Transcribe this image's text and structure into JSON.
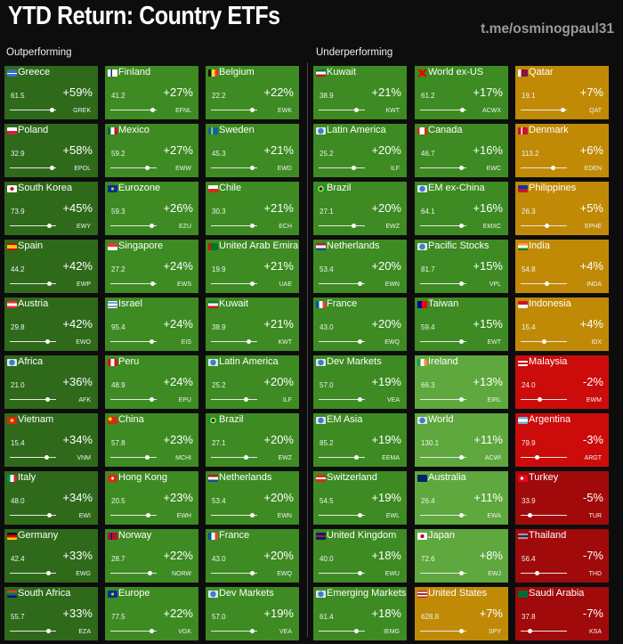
{
  "header": {
    "title": "YTD Return: Country ETFs",
    "channel": "t.me/osminogpaul31"
  },
  "sections": {
    "outperforming": "Outperforming",
    "underperforming": "Underperforming"
  },
  "colors": {
    "dark_green": "#2e6a1a",
    "green": "#3d8b22",
    "light_green": "#5ea83d",
    "amber": "#c18a06",
    "red": "#cc0b0b",
    "dark_red": "#a00a0a",
    "background": "#0d0d0d"
  },
  "columns": [
    {
      "section": "outperforming",
      "tiles": [
        {
          "name": "Greece",
          "price": "61.5",
          "return": "+59%",
          "ticker": "GREK",
          "color": "dark_green",
          "flag": "flag-greece",
          "range_position": 0.9
        },
        {
          "name": "Poland",
          "price": "32.9",
          "return": "+58%",
          "ticker": "EPOL",
          "color": "dark_green",
          "flag": "flag-poland",
          "range_position": 0.9
        },
        {
          "name": "South Korea",
          "price": "73.9",
          "return": "+45%",
          "ticker": "EWY",
          "color": "dark_green",
          "flag": "flag-south-korea",
          "range_position": 0.85
        },
        {
          "name": "Spain",
          "price": "44.2",
          "return": "+42%",
          "ticker": "EWP",
          "color": "dark_green",
          "flag": "flag-spain",
          "range_position": 0.85
        },
        {
          "name": "Austria",
          "price": "29.8",
          "return": "+42%",
          "ticker": "EWO",
          "color": "dark_green",
          "flag": "flag-austria",
          "range_position": 0.8
        },
        {
          "name": "Africa",
          "price": "21.0",
          "return": "+36%",
          "ticker": "AFK",
          "color": "dark_green",
          "flag": "flag-africa",
          "range_position": 0.8
        },
        {
          "name": "Vietnam",
          "price": "15.4",
          "return": "+34%",
          "ticker": "VNM",
          "color": "dark_green",
          "flag": "flag-vietnam",
          "range_position": 0.78
        },
        {
          "name": "Italy",
          "price": "48.0",
          "return": "+34%",
          "ticker": "EWI",
          "color": "dark_green",
          "flag": "flag-italy",
          "range_position": 0.85
        },
        {
          "name": "Germany",
          "price": "42.4",
          "return": "+33%",
          "ticker": "EWG",
          "color": "dark_green",
          "flag": "flag-germany",
          "range_position": 0.82
        },
        {
          "name": "South Africa",
          "price": "55.7",
          "return": "+33%",
          "ticker": "EZA",
          "color": "dark_green",
          "flag": "flag-south-africa",
          "range_position": 0.82
        }
      ]
    },
    {
      "section": "outperforming",
      "tiles": [
        {
          "name": "Finland",
          "price": "41.2",
          "return": "+27%",
          "ticker": "EFNL",
          "color": "green",
          "flag": "flag-finland",
          "range_position": 0.9
        },
        {
          "name": "Mexico",
          "price": "59.2",
          "return": "+27%",
          "ticker": "EWW",
          "color": "green",
          "flag": "flag-mexico",
          "range_position": 0.78
        },
        {
          "name": "Eurozone",
          "price": "59.3",
          "return": "+26%",
          "ticker": "EZU",
          "color": "green",
          "flag": "flag-eurozone",
          "range_position": 0.88
        },
        {
          "name": "Singapore",
          "price": "27.2",
          "return": "+24%",
          "ticker": "EWS",
          "color": "green",
          "flag": "flag-singapore",
          "range_position": 0.9
        },
        {
          "name": "Israel",
          "price": "95.4",
          "return": "+24%",
          "ticker": "EIS",
          "color": "green",
          "flag": "flag-israel",
          "range_position": 0.88
        },
        {
          "name": "Peru",
          "price": "48.9",
          "return": "+24%",
          "ticker": "EPU",
          "color": "green",
          "flag": "flag-peru",
          "range_position": 0.88
        },
        {
          "name": "China",
          "price": "57.8",
          "return": "+23%",
          "ticker": "MCHI",
          "color": "green",
          "flag": "flag-china",
          "range_position": 0.78
        },
        {
          "name": "Hong Kong",
          "price": "20.5",
          "return": "+23%",
          "ticker": "EWH",
          "color": "green",
          "flag": "flag-hong-kong",
          "range_position": 0.8
        },
        {
          "name": "Norway",
          "price": "28.7",
          "return": "+22%",
          "ticker": "NORW",
          "color": "green",
          "flag": "flag-norway",
          "range_position": 0.85
        },
        {
          "name": "Europe",
          "price": "77.5",
          "return": "+22%",
          "ticker": "VGK",
          "color": "green",
          "flag": "flag-europe",
          "range_position": 0.88
        }
      ]
    },
    {
      "section": "outperforming",
      "tiles": [
        {
          "name": "Belgium",
          "price": "22.2",
          "return": "+22%",
          "ticker": "EWK",
          "color": "green",
          "flag": "flag-belgium",
          "range_position": 0.88
        },
        {
          "name": "Sweden",
          "price": "45.3",
          "return": "+21%",
          "ticker": "EWD",
          "color": "green",
          "flag": "flag-sweden",
          "range_position": 0.88
        },
        {
          "name": "Chile",
          "price": "30.3",
          "return": "+21%",
          "ticker": "ECH",
          "color": "green",
          "flag": "flag-chile",
          "range_position": 0.88
        },
        {
          "name": "United Arab Emira",
          "price": "19.9",
          "return": "+21%",
          "ticker": "UAE",
          "color": "green",
          "flag": "flag-uae",
          "range_position": 0.88
        },
        {
          "name": "Kuwait",
          "price": "38.9",
          "return": "+21%",
          "ticker": "KWT",
          "color": "green",
          "flag": "flag-kuwait",
          "range_position": 0.8
        },
        {
          "name": "Latin America",
          "price": "25.2",
          "return": "+20%",
          "ticker": "ILF",
          "color": "green",
          "flag": "flag-latin-america",
          "range_position": 0.75
        },
        {
          "name": "Brazil",
          "price": "27.1",
          "return": "+20%",
          "ticker": "EWZ",
          "color": "green",
          "flag": "flag-brazil",
          "range_position": 0.75
        },
        {
          "name": "Netherlands",
          "price": "53.4",
          "return": "+20%",
          "ticker": "EWN",
          "color": "green",
          "flag": "flag-netherlands",
          "range_position": 0.88
        },
        {
          "name": "France",
          "price": "43.0",
          "return": "+20%",
          "ticker": "EWQ",
          "color": "green",
          "flag": "flag-france",
          "range_position": 0.88
        },
        {
          "name": "Dev Markets",
          "price": "57.0",
          "return": "+19%",
          "ticker": "VEA",
          "color": "green",
          "flag": "flag-dev-markets",
          "range_position": 0.88
        }
      ]
    },
    {
      "section": "underperforming",
      "tiles": [
        {
          "name": "Kuwait",
          "price": "38.9",
          "return": "+21%",
          "ticker": "KWT",
          "color": "green",
          "flag": "flag-kuwait",
          "range_position": 0.8
        },
        {
          "name": "Latin America",
          "price": "25.2",
          "return": "+20%",
          "ticker": "ILF",
          "color": "green",
          "flag": "flag-latin-america",
          "range_position": 0.75
        },
        {
          "name": "Brazil",
          "price": "27.1",
          "return": "+20%",
          "ticker": "EWZ",
          "color": "green",
          "flag": "flag-brazil",
          "range_position": 0.75
        },
        {
          "name": "Netherlands",
          "price": "53.4",
          "return": "+20%",
          "ticker": "EWN",
          "color": "green",
          "flag": "flag-netherlands",
          "range_position": 0.88
        },
        {
          "name": "France",
          "price": "43.0",
          "return": "+20%",
          "ticker": "EWQ",
          "color": "green",
          "flag": "flag-france",
          "range_position": 0.88
        },
        {
          "name": "Dev Markets",
          "price": "57.0",
          "return": "+19%",
          "ticker": "VEA",
          "color": "green",
          "flag": "flag-dev-markets",
          "range_position": 0.88
        },
        {
          "name": "EM Asia",
          "price": "85.2",
          "return": "+19%",
          "ticker": "EEMA",
          "color": "green",
          "flag": "flag-em-asia",
          "range_position": 0.8
        },
        {
          "name": "Switzerland",
          "price": "54.5",
          "return": "+19%",
          "ticker": "EWL",
          "color": "green",
          "flag": "flag-switzerland",
          "range_position": 0.88
        },
        {
          "name": "United Kingdom",
          "price": "40.0",
          "return": "+18%",
          "ticker": "EWU",
          "color": "green",
          "flag": "flag-united-kingdom",
          "range_position": 0.88
        },
        {
          "name": "Emerging Markets",
          "price": "61.4",
          "return": "+18%",
          "ticker": "IEMG",
          "color": "green",
          "flag": "flag-emerging-markets",
          "range_position": 0.8
        }
      ]
    },
    {
      "section": "underperforming",
      "tiles": [
        {
          "name": "World ex-US",
          "price": "61.2",
          "return": "+17%",
          "ticker": "ACWX",
          "color": "green",
          "flag": "flag-world-ex-us",
          "range_position": 0.9
        },
        {
          "name": "Canada",
          "price": "46.7",
          "return": "+16%",
          "ticker": "EWC",
          "color": "green",
          "flag": "flag-canada",
          "range_position": 0.88
        },
        {
          "name": "EM ex-China",
          "price": "64.1",
          "return": "+16%",
          "ticker": "EMXC",
          "color": "green",
          "flag": "flag-em-ex-china",
          "range_position": 0.88
        },
        {
          "name": "Pacific Stocks",
          "price": "81.7",
          "return": "+15%",
          "ticker": "VPL",
          "color": "green",
          "flag": "flag-pacific-stocks",
          "range_position": 0.88
        },
        {
          "name": "Taiwan",
          "price": "59.4",
          "return": "+15%",
          "ticker": "EWT",
          "color": "green",
          "flag": "flag-taiwan",
          "range_position": 0.88
        },
        {
          "name": "Ireland",
          "price": "66.3",
          "return": "+13%",
          "ticker": "EIRL",
          "color": "light_green",
          "flag": "flag-ireland",
          "range_position": 0.88
        },
        {
          "name": "World",
          "price": "130.1",
          "return": "+11%",
          "ticker": "ACWI",
          "color": "light_green",
          "flag": "flag-world",
          "range_position": 0.88
        },
        {
          "name": "Australia",
          "price": "26.4",
          "return": "+11%",
          "ticker": "EWA",
          "color": "light_green",
          "flag": "flag-australia",
          "range_position": 0.88
        },
        {
          "name": "Japan",
          "price": "72.6",
          "return": "+8%",
          "ticker": "EWJ",
          "color": "light_green",
          "flag": "flag-japan",
          "range_position": 0.88
        },
        {
          "name": "United States",
          "price": "628.8",
          "return": "+7%",
          "ticker": "SPY",
          "color": "amber",
          "flag": "flag-united-states",
          "range_position": 0.88
        }
      ]
    },
    {
      "section": "underperforming",
      "tiles": [
        {
          "name": "Qatar",
          "price": "19.1",
          "return": "+7%",
          "ticker": "QAT",
          "color": "amber",
          "flag": "flag-qatar",
          "range_position": 0.9
        },
        {
          "name": "Denmark",
          "price": "113.2",
          "return": "+6%",
          "ticker": "EDEN",
          "color": "amber",
          "flag": "flag-denmark",
          "range_position": 0.7
        },
        {
          "name": "Philippines",
          "price": "26.3",
          "return": "+5%",
          "ticker": "EPHE",
          "color": "amber",
          "flag": "flag-philippines",
          "range_position": 0.55
        },
        {
          "name": "India",
          "price": "54.8",
          "return": "+4%",
          "ticker": "INDA",
          "color": "amber",
          "flag": "flag-india",
          "range_position": 0.55
        },
        {
          "name": "Indonesia",
          "price": "15.4",
          "return": "+4%",
          "ticker": "IDX",
          "color": "amber",
          "flag": "flag-indonesia",
          "range_position": 0.5
        },
        {
          "name": "Malaysia",
          "price": "24.0",
          "return": "-2%",
          "ticker": "EWM",
          "color": "red",
          "flag": "flag-malaysia",
          "range_position": 0.4
        },
        {
          "name": "Argentina",
          "price": "79.9",
          "return": "-3%",
          "ticker": "ARGT",
          "color": "red",
          "flag": "flag-argentina",
          "range_position": 0.35
        },
        {
          "name": "Turkey",
          "price": "33.9",
          "return": "-5%",
          "ticker": "TUR",
          "color": "dark_red",
          "flag": "flag-turkey",
          "range_position": 0.2
        },
        {
          "name": "Thailand",
          "price": "56.4",
          "return": "-7%",
          "ticker": "THD",
          "color": "dark_red",
          "flag": "flag-thailand",
          "range_position": 0.35
        },
        {
          "name": "Saudi Arabia",
          "price": "37.8",
          "return": "-7%",
          "ticker": "KSA",
          "color": "dark_red",
          "flag": "flag-saudi-arabia",
          "range_position": 0.2
        }
      ]
    }
  ]
}
